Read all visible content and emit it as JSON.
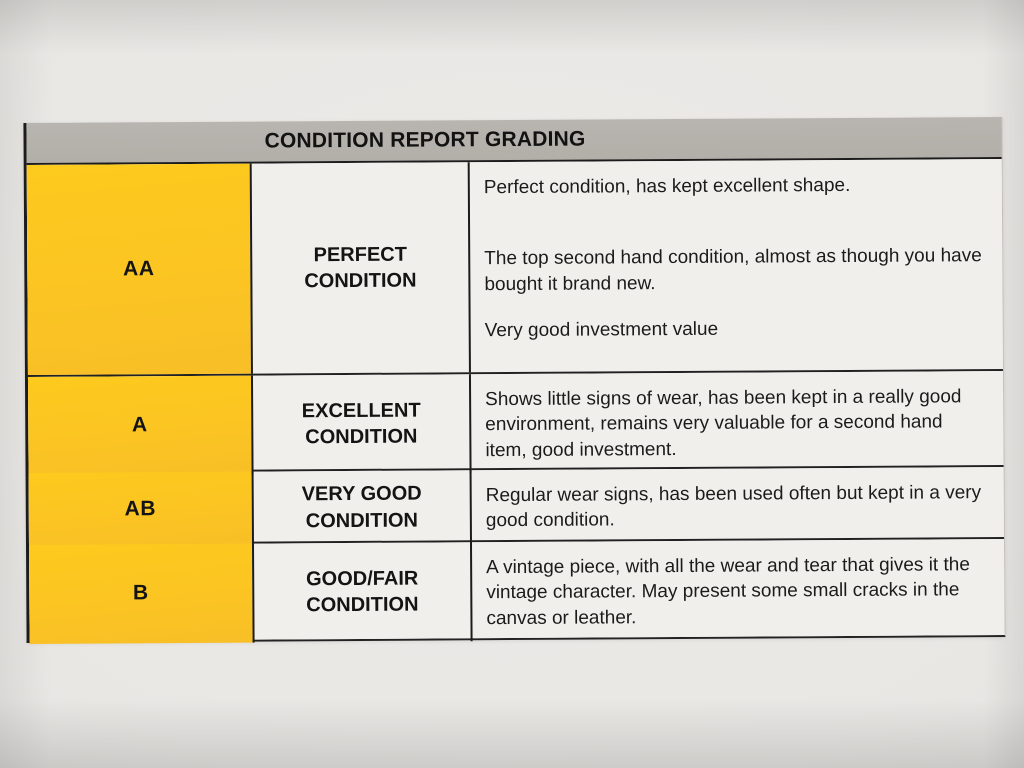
{
  "table": {
    "title": "CONDITION REPORT GRADING",
    "colors": {
      "header_bar": "#b2afa9",
      "grade_column": "#fbc423",
      "cell_background": "#f1efec",
      "border": "#1c1c1c",
      "text": "#171717"
    },
    "rows": [
      {
        "grade": "AA",
        "condition": "PERFECT CONDITION",
        "description": [
          "Perfect condition, has kept excellent shape.",
          "The top second hand condition, almost as though you have bought it brand new.",
          "Very good investment value"
        ]
      },
      {
        "grade": "A",
        "condition": "EXCELLENT CONDITION",
        "description": [
          "Shows little signs of wear, has been kept in a really good environment, remains very valuable for a second hand item, good investment."
        ]
      },
      {
        "grade": "AB",
        "condition": "VERY GOOD CONDITION",
        "description": [
          "Regular wear signs, has been used often but kept in a very good condition."
        ]
      },
      {
        "grade": "B",
        "condition": "GOOD/FAIR CONDITION",
        "description": [
          "A vintage piece, with all the wear and tear that gives it the vintage character. May present some small cracks in the canvas or leather."
        ]
      }
    ]
  }
}
